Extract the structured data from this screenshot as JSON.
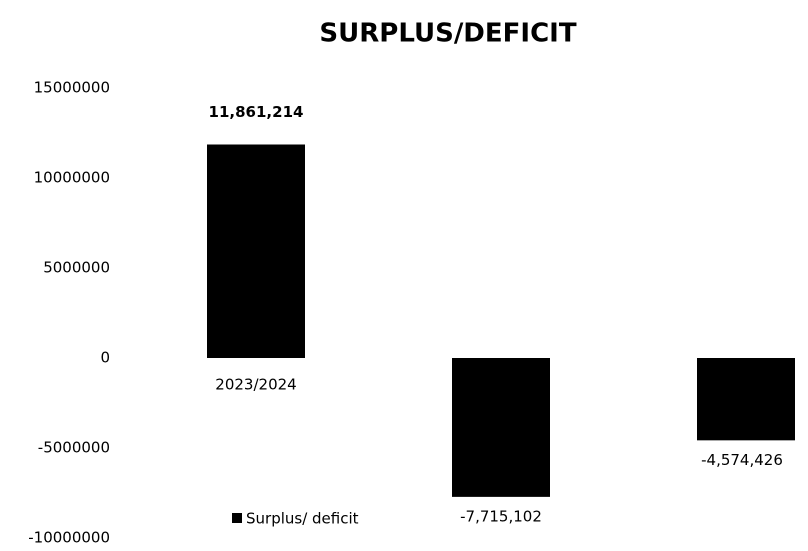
{
  "chart_data": {
    "type": "bar",
    "title": "SURPLUS/DEFICIT",
    "categories": [
      "2023/2024",
      null,
      null
    ],
    "series": [
      {
        "name": "Surplus/ deficit",
        "color": "#000000",
        "values": [
          11861214,
          -7715102,
          -4574426
        ],
        "value_labels": [
          "11,861,214",
          "-7,715,102",
          "-4,574,426"
        ]
      }
    ],
    "ylim": [
      -10000000,
      15000000
    ],
    "yticks": [
      15000000,
      10000000,
      5000000,
      0,
      -5000000,
      -10000000
    ],
    "grid": false,
    "legend": "bottom"
  }
}
